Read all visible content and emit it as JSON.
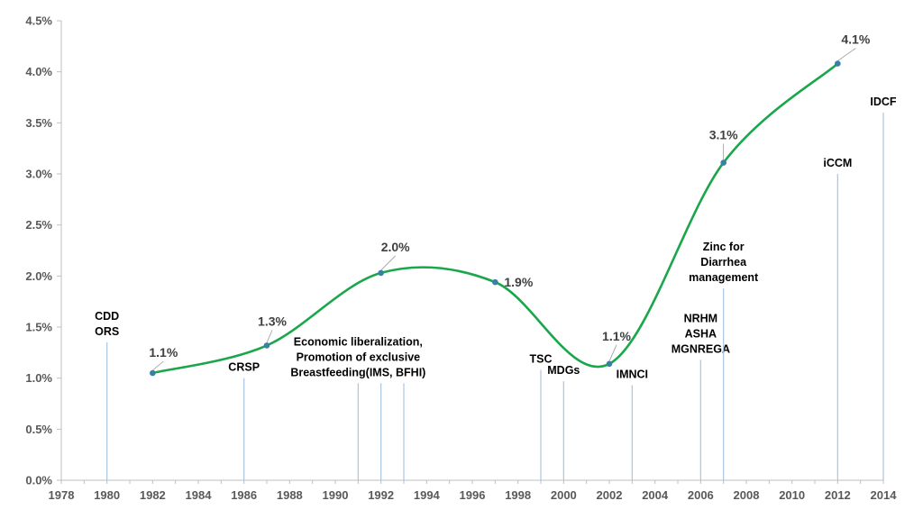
{
  "chart_data": {
    "type": "line",
    "title": "",
    "xlabel": "",
    "ylabel": "",
    "xlim": [
      1978,
      2014
    ],
    "ylim": [
      0,
      4.5
    ],
    "x_ticks": [
      "1978",
      "1980",
      "1982",
      "1984",
      "1986",
      "1988",
      "1990",
      "1992",
      "1994",
      "1996",
      "1998",
      "2000",
      "2002",
      "2004",
      "2006",
      "2008",
      "2010",
      "2012",
      "2014"
    ],
    "y_ticks": [
      "0.0%",
      "0.5%",
      "1.0%",
      "1.5%",
      "2.0%",
      "2.5%",
      "3.0%",
      "3.5%",
      "4.0%",
      "4.5%"
    ],
    "grid": false,
    "legend": "none",
    "series": [
      {
        "x": [
          1982,
          1987,
          1992,
          1997,
          2002,
          2007,
          2012
        ],
        "y": [
          1.05,
          1.32,
          2.03,
          1.94,
          1.14,
          3.11,
          4.08
        ],
        "labels": [
          "1.1%",
          "1.3%",
          "2.0%",
          "1.9%",
          "1.1%",
          "3.1%",
          "4.1%"
        ],
        "color": "#1aa64b",
        "marker_color": "#3a7fa6"
      }
    ],
    "annotations": [
      {
        "x": 1980,
        "top": 1.35,
        "lines": [
          "CDD",
          "ORS"
        ]
      },
      {
        "x": 1986,
        "top": 1.0,
        "lines": [
          "CRSP"
        ]
      },
      {
        "x": 1991,
        "top": 0.95,
        "lines": [
          "Economic liberalization,",
          "Promotion of exclusive",
          "Breastfeeding(IMS, BFHI)"
        ]
      },
      {
        "x": 1992,
        "top": 0.95,
        "lines": []
      },
      {
        "x": 1993,
        "top": 0.95,
        "lines": []
      },
      {
        "x": 1999,
        "top": 1.08,
        "lines": [
          "TSC"
        ]
      },
      {
        "x": 2000,
        "top": 0.97,
        "lines": [
          "MDGs"
        ]
      },
      {
        "x": 2003,
        "top": 0.93,
        "lines": [
          "IMNCI"
        ]
      },
      {
        "x": 2006,
        "top": 1.18,
        "lines": [
          "NRHM",
          "ASHA",
          "MGNREGA"
        ]
      },
      {
        "x": 2007,
        "top": 1.88,
        "lines": [
          "Zinc for",
          "Diarrhea",
          "management"
        ]
      },
      {
        "x": 2012,
        "top": 3.0,
        "lines": [
          "iCCM"
        ]
      },
      {
        "x": 2014,
        "top": 3.6,
        "lines": [
          "IDCF"
        ]
      }
    ],
    "colors": {
      "line": "#1aa64b",
      "marker": "#3a7fa6",
      "annotation_line": "#a9c4e0",
      "axis": "#bfbfbf"
    }
  }
}
